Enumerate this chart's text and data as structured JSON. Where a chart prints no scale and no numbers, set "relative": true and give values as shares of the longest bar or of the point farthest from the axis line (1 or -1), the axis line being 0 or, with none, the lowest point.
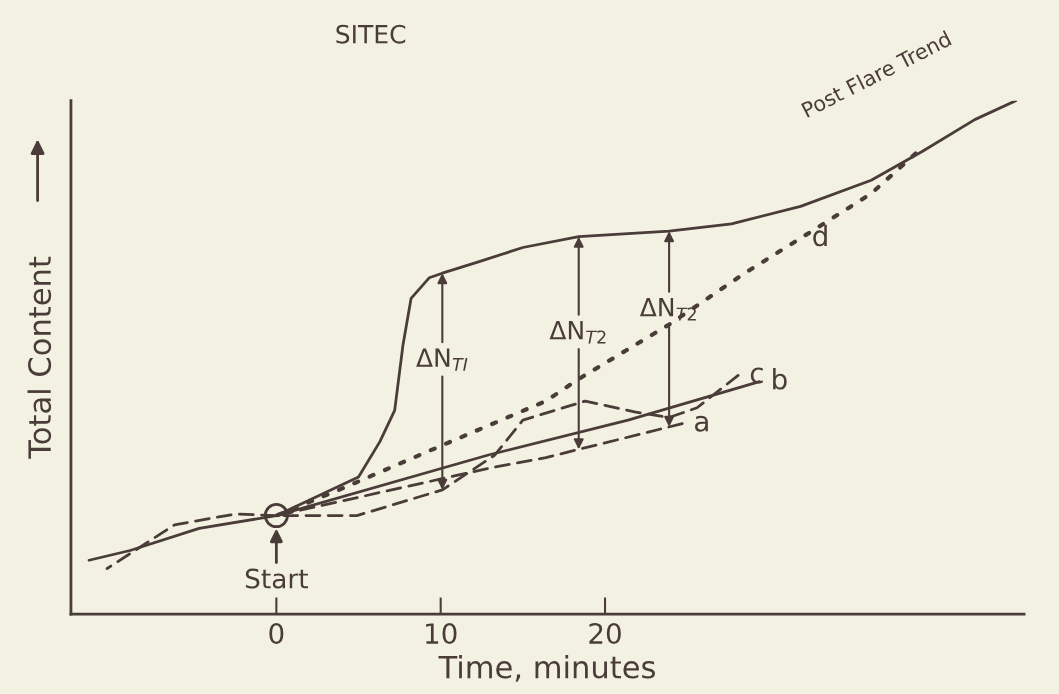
{
  "chart_data": {
    "type": "line",
    "relative": true,
    "title": "SITEC",
    "xlabel": "Time, minutes",
    "ylabel": "Total Content",
    "xlim": [
      -12.5,
      45.5
    ],
    "xticks": [
      0,
      10,
      20
    ],
    "grid": false,
    "series": [
      {
        "color": "#4a3c38",
        "line_style": "solid",
        "x": [
          -11.4,
          -8.9,
          -4.7,
          0,
          3.8,
          5.0,
          6.3,
          7.2,
          7.7,
          8.2,
          9.3,
          10.1,
          12.2,
          15.0,
          18.4,
          23.9,
          27.7,
          31.9,
          36.2,
          39.3,
          42.5,
          45.0
        ],
        "values": [
          0.105,
          0.124,
          0.167,
          0.192,
          0.249,
          0.267,
          0.336,
          0.397,
          0.523,
          0.615,
          0.655,
          0.664,
          0.685,
          0.714,
          0.735,
          0.746,
          0.76,
          0.794,
          0.845,
          0.901,
          0.963,
          1.0
        ]
      },
      {
        "color": "#4a3c38",
        "line_style": "dotted",
        "x": [
          0,
          3.8,
          10.1,
          16.4,
          18.4,
          23.9,
          28.5,
          31.9,
          36.2,
          38.9
        ],
        "values": [
          0.192,
          0.242,
          0.329,
          0.415,
          0.458,
          0.564,
          0.664,
          0.732,
          0.819,
          0.897
        ]
      },
      {
        "color": "#4a3c38",
        "line_style": "solid",
        "x": [
          0,
          12.9,
          21.4,
          29.4
        ],
        "values": [
          0.192,
          0.31,
          0.378,
          0.453
        ]
      },
      {
        "color": "#4a3c38",
        "line_style": "dashed",
        "x": [
          0,
          12.9,
          16.4,
          24.7
        ],
        "values": [
          0.192,
          0.284,
          0.305,
          0.371
        ]
      },
      {
        "color": "#4a3c38",
        "line_style": "dashed",
        "x": [
          -10.3,
          -6.2,
          -2.5,
          0,
          4.9,
          10.1,
          13.3,
          15.0,
          18.8,
          21.8,
          23.9,
          25.6,
          28.1
        ],
        "values": [
          0.089,
          0.174,
          0.195,
          0.192,
          0.192,
          0.242,
          0.31,
          0.378,
          0.415,
          0.394,
          0.383,
          0.402,
          0.465
        ]
      }
    ],
    "annotations": [
      {
        "text": "Start",
        "x": 0,
        "y": 0.192
      },
      {
        "text": "ΔN$_{TI}$",
        "x": 10.1,
        "y": 0.664
      },
      {
        "text": "ΔN$_{T2}$",
        "x": 18.4,
        "y": 0.735
      },
      {
        "text": "ΔN$_{T2}$",
        "x": 23.9,
        "y": 0.746
      },
      {
        "text": "a",
        "x": 24.7,
        "y": 0.371
      },
      {
        "text": "b",
        "x": 29.4,
        "y": 0.453
      },
      {
        "text": "c",
        "x": 28.1,
        "y": 0.465
      },
      {
        "text": "d",
        "x": 31.9,
        "y": 0.732
      },
      {
        "text": "Post Flare Trend",
        "x": 42.5,
        "y": 0.963
      }
    ]
  }
}
